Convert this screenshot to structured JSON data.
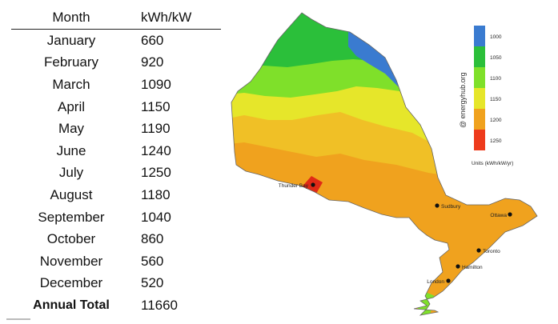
{
  "table": {
    "headers": [
      "Month",
      "kWh/kW"
    ],
    "rows": [
      {
        "month": "January",
        "value": "660"
      },
      {
        "month": "February",
        "value": "920"
      },
      {
        "month": "March",
        "value": "1090"
      },
      {
        "month": "April",
        "value": "1150"
      },
      {
        "month": "May",
        "value": "1190"
      },
      {
        "month": "June",
        "value": "1240"
      },
      {
        "month": "July",
        "value": "1250"
      },
      {
        "month": "August",
        "value": "1180"
      },
      {
        "month": "September",
        "value": "1040"
      },
      {
        "month": "October",
        "value": "860"
      },
      {
        "month": "November",
        "value": "560"
      },
      {
        "month": "December",
        "value": "520"
      }
    ],
    "total": {
      "label": "Annual Total",
      "value": "11660"
    }
  },
  "map": {
    "watermark": "@ energyhub.org",
    "legend": {
      "items": [
        {
          "label": "1000",
          "color": "#3a7bd0"
        },
        {
          "label": "1050",
          "color": "#2bbf3a"
        },
        {
          "label": "1100",
          "color": "#7fe02a"
        },
        {
          "label": "1150",
          "color": "#e6e62a"
        },
        {
          "label": "1200",
          "color": "#f0a21e"
        },
        {
          "label": "1250",
          "color": "#ee3b1c"
        }
      ],
      "units": "Units (kWh/kW/yr)"
    },
    "cities": [
      {
        "name": "Thunder Bay"
      },
      {
        "name": "Sudbury"
      },
      {
        "name": "Ottawa"
      },
      {
        "name": "Toronto"
      },
      {
        "name": "Hamilton"
      },
      {
        "name": "London"
      }
    ]
  }
}
